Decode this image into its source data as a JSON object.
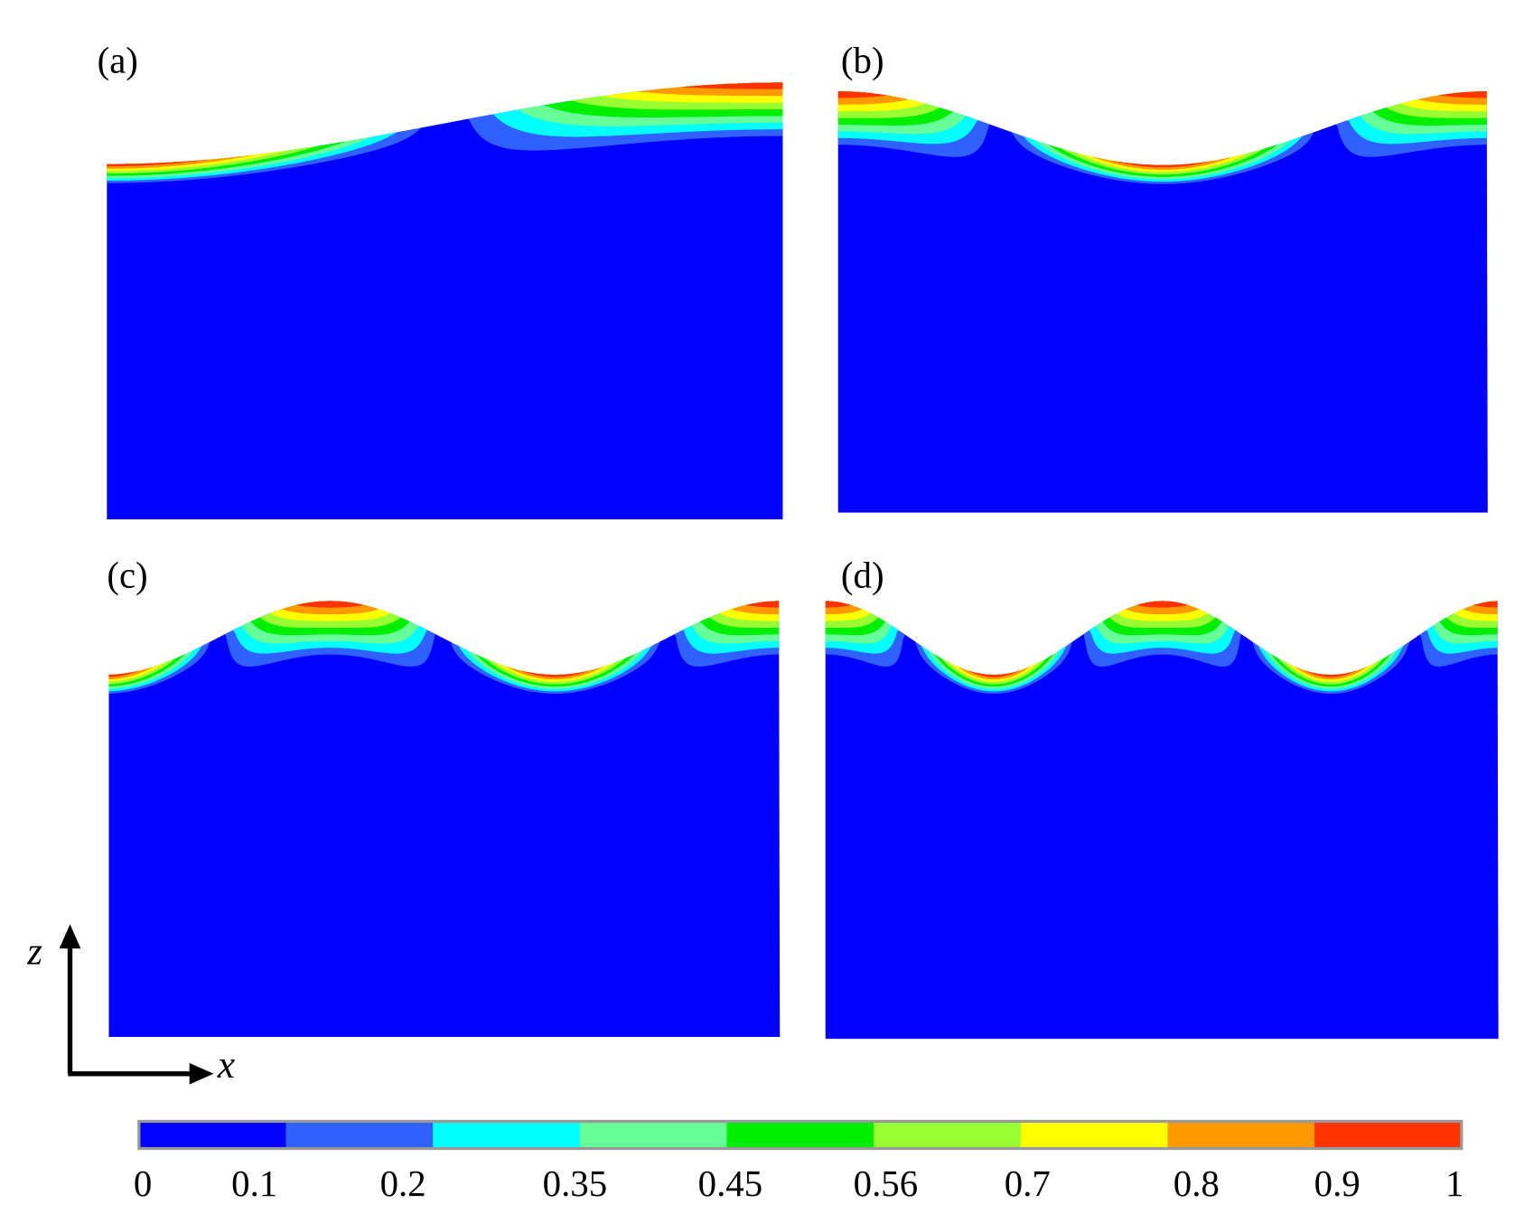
{
  "panels": [
    {
      "label": "(a)"
    },
    {
      "label": "(b)"
    },
    {
      "label": "(c)"
    },
    {
      "label": "(d)"
    }
  ],
  "axes": {
    "z": "z",
    "x": "x"
  },
  "colorbar": {
    "labels": [
      0,
      0.1,
      0.2,
      0.35,
      0.45,
      0.56,
      0.7,
      0.8,
      0.9,
      1
    ],
    "colors": [
      "#0000ff",
      "#3060ff",
      "#00ffff",
      "#66ff99",
      "#00ee00",
      "#99ff33",
      "#ffff00",
      "#ff9900",
      "#ff3300"
    ]
  }
}
